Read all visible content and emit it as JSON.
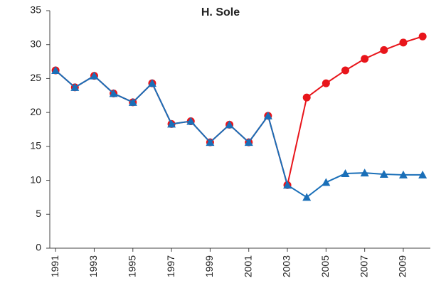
{
  "chart_data": {
    "type": "line",
    "title": "H. Sole",
    "x": [
      1991,
      1992,
      1993,
      1994,
      1995,
      1996,
      1997,
      1998,
      1999,
      2000,
      2001,
      2002,
      2003,
      2004,
      2005,
      2006,
      2007,
      2008,
      2009,
      2010
    ],
    "series": [
      {
        "color": "#e8151b",
        "marker": "circle",
        "values": [
          26.2,
          23.7,
          25.4,
          22.8,
          21.5,
          24.3,
          18.3,
          18.7,
          15.6,
          18.2,
          15.6,
          19.5,
          9.3,
          22.2,
          24.3,
          26.2,
          27.9,
          29.2,
          30.3,
          31.2
        ]
      },
      {
        "color": "#1a6fb8",
        "marker": "triangle",
        "values": [
          26.2,
          23.7,
          25.4,
          22.8,
          21.5,
          24.3,
          18.3,
          18.7,
          15.6,
          18.2,
          15.6,
          19.5,
          9.3,
          7.5,
          9.7,
          11.0,
          11.1,
          10.9,
          10.8,
          10.8
        ]
      }
    ],
    "xlim": [
      1990.7,
      2010.4
    ],
    "xticks": [
      1991,
      1993,
      1995,
      1997,
      1999,
      2001,
      2003,
      2005,
      2007,
      2009
    ],
    "ylim": [
      0,
      35
    ],
    "yticks": [
      0,
      5,
      10,
      15,
      20,
      25,
      30,
      35
    ],
    "grid": false
  }
}
